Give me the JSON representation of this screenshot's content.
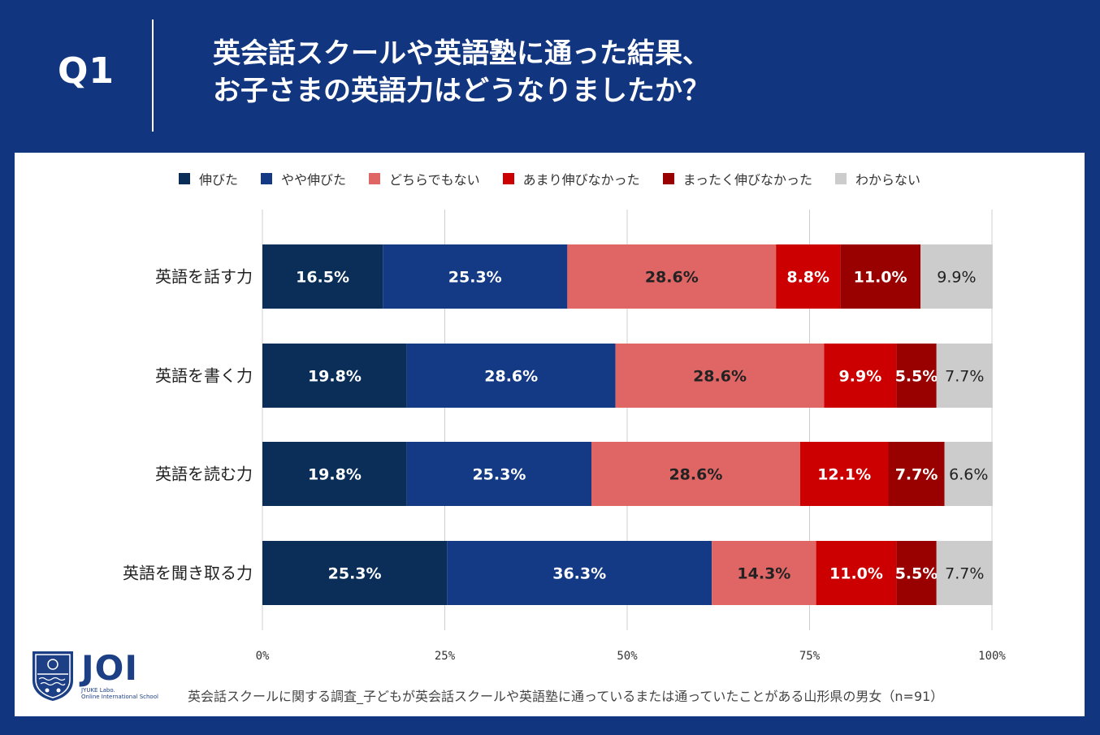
{
  "header": {
    "question_label": "Q1",
    "title_line1": "英会話スクールや英語塾に通った結果、",
    "title_line2": "お子さまの英語力はどうなりましたか？"
  },
  "legend": [
    {
      "label": "伸びた",
      "color": "#0a2e57"
    },
    {
      "label": "やや伸びた",
      "color": "#153a85"
    },
    {
      "label": "どちらでもない",
      "color": "#e06666"
    },
    {
      "label": "あまり伸びなかった",
      "color": "#cc0000"
    },
    {
      "label": "まったく伸びなかった",
      "color": "#990000"
    },
    {
      "label": "わからない",
      "color": "#cccccc"
    }
  ],
  "chart_data": {
    "type": "bar",
    "orientation": "horizontal",
    "stacked": true,
    "categories": [
      "英語を話す力",
      "英語を書く力",
      "英語を読む力",
      "英語を聞き取る力"
    ],
    "series": [
      {
        "name": "伸びた",
        "values": [
          16.5,
          19.8,
          19.8,
          25.3
        ],
        "labels": [
          "16.5%",
          "19.8%",
          "19.8%",
          "25.3%"
        ]
      },
      {
        "name": "やや伸びた",
        "values": [
          25.3,
          28.6,
          25.3,
          36.3
        ],
        "labels": [
          "25.3%",
          "28.6%",
          "25.3%",
          "36.3%"
        ]
      },
      {
        "name": "どちらでもない",
        "values": [
          28.6,
          28.6,
          28.6,
          14.3
        ],
        "labels": [
          "28.6%",
          "28.6%",
          "28.6%",
          "14.3%"
        ]
      },
      {
        "name": "あまり伸びなかった",
        "values": [
          8.8,
          9.9,
          12.1,
          11.0
        ],
        "labels": [
          "8.8%",
          "9.9%",
          "12.1%",
          "11.0%"
        ]
      },
      {
        "name": "まったく伸びなかった",
        "values": [
          11.0,
          5.5,
          7.7,
          5.5
        ],
        "labels": [
          "11.0%",
          "5.5%",
          "7.7%",
          "5.5%"
        ]
      },
      {
        "name": "わからない",
        "values": [
          9.9,
          7.7,
          6.6,
          7.7
        ],
        "labels": [
          "9.9%",
          "7.7%",
          "6.6%",
          "7.7%"
        ]
      }
    ],
    "xlim": [
      0,
      100
    ],
    "xticks": [
      0,
      25,
      50,
      75,
      100
    ],
    "xtick_labels": [
      "0%",
      "25%",
      "50%",
      "75%",
      "100%"
    ],
    "grid": true,
    "legend_position": "top"
  },
  "footer": {
    "note": "英会話スクールに関する調査_子どもが英会話スクールや英語塾に通っているまたは通っていたことがある山形県の男女（n=91）"
  },
  "logo": {
    "name": "JOI",
    "sub1": "JYUKE Labo.",
    "sub2": "Online International School"
  }
}
